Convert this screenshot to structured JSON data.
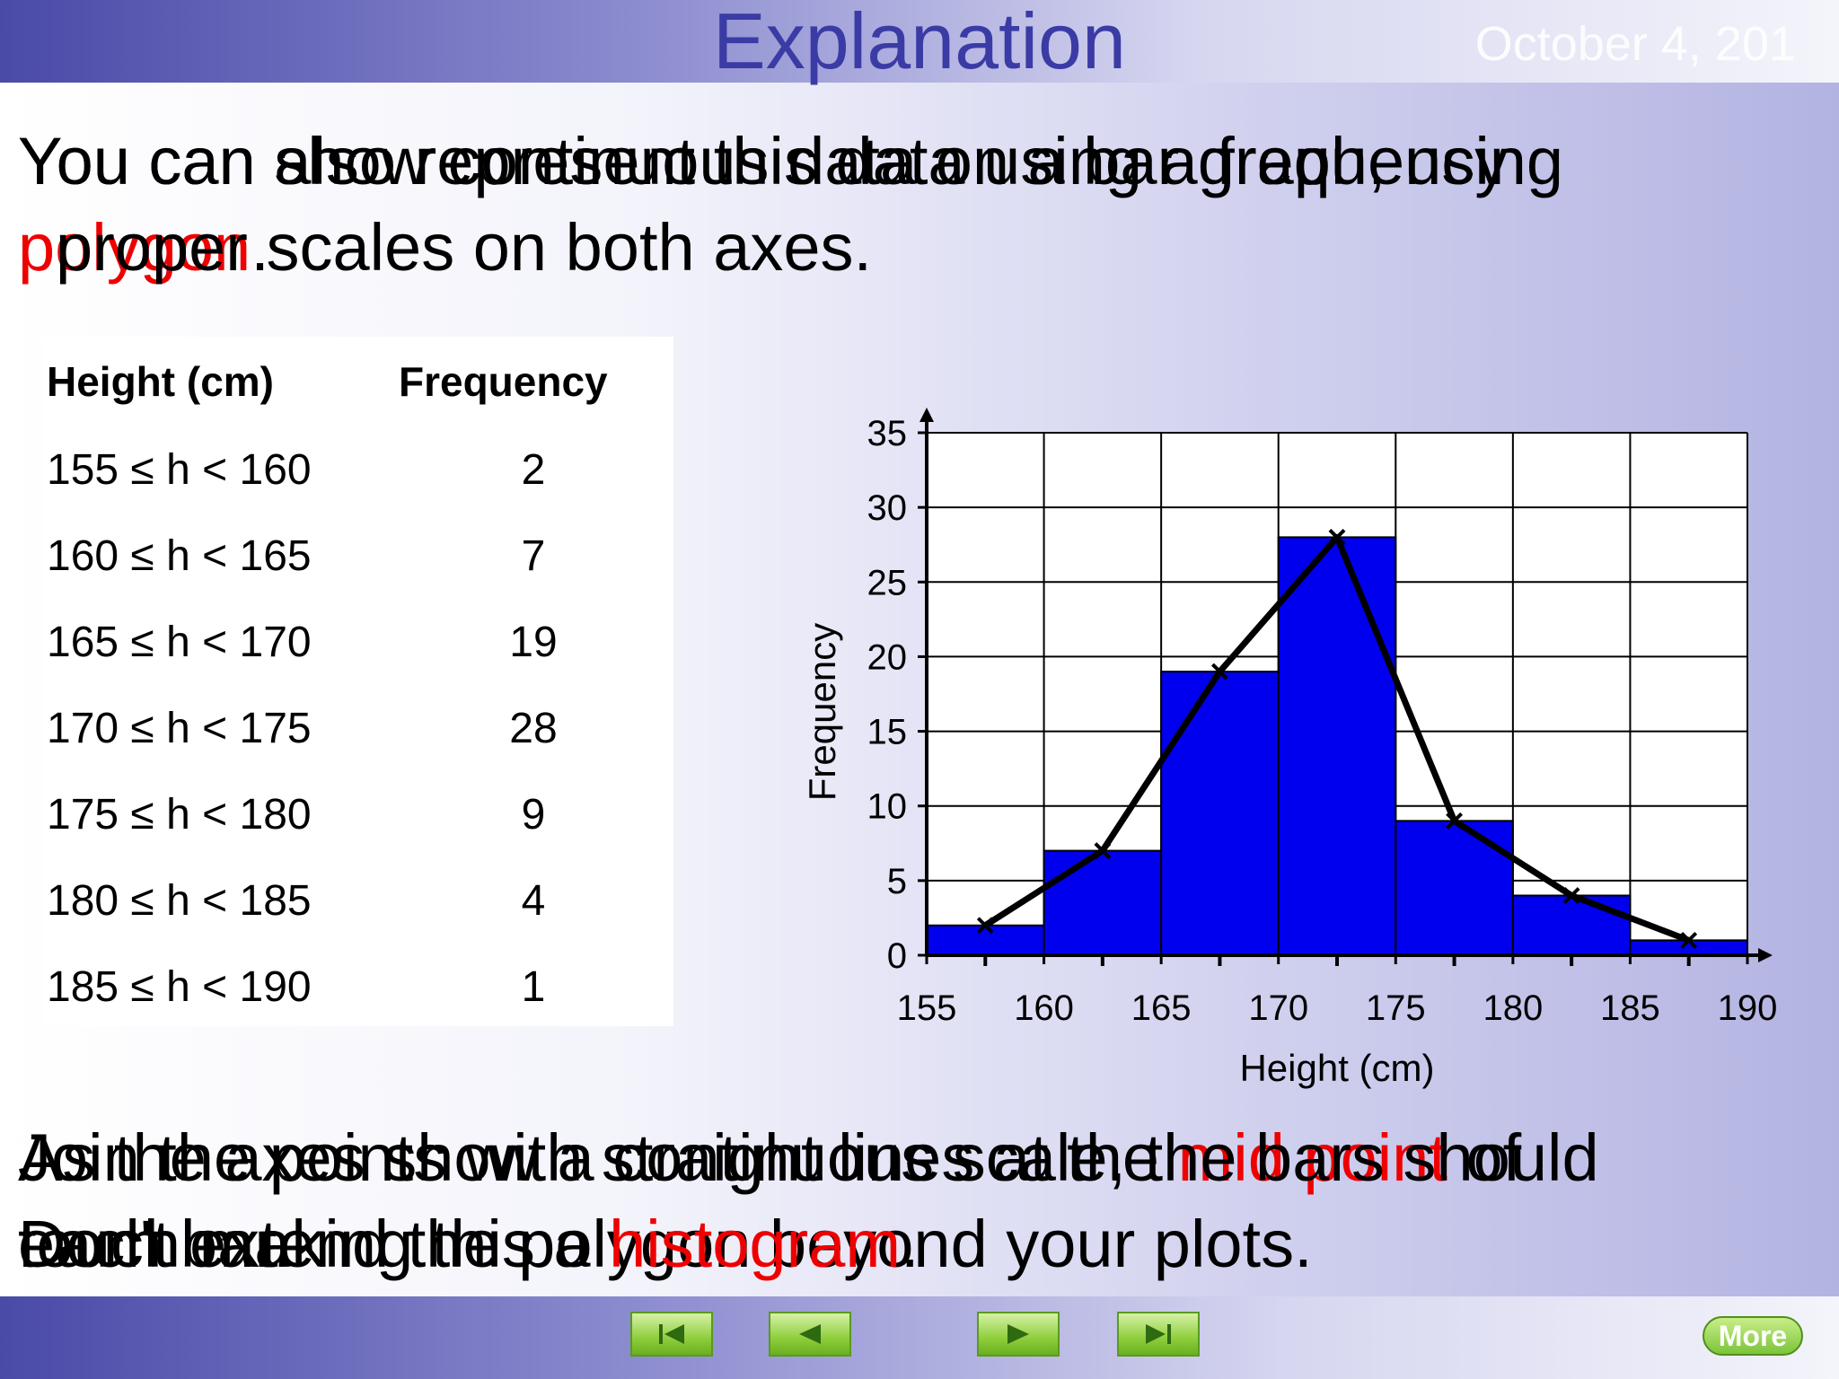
{
  "slide": {
    "title": "Explanation",
    "date": "October 4, 201"
  },
  "intro": {
    "layer1_text": "You can also represent this data using a frequency",
    "layer1_red": "polygon",
    "layer1_rest": ".",
    "layer2_text": "You can show continuous data on a bar graph, using",
    "layer2_line2": "proper scales on both axes."
  },
  "table": {
    "headers": [
      "Height (cm)",
      "Frequency"
    ],
    "rows": [
      {
        "range": "155 ≤ h < 160",
        "freq": "2"
      },
      {
        "range": "160 ≤ h < 165",
        "freq": "7"
      },
      {
        "range": "165 ≤ h < 170",
        "freq": "19"
      },
      {
        "range": "170 ≤ h < 175",
        "freq": "28"
      },
      {
        "range": "175 ≤ h < 180",
        "freq": "9"
      },
      {
        "range": "180 ≤ h < 185",
        "freq": "4"
      },
      {
        "range": "185 ≤ h < 190",
        "freq": "1"
      }
    ]
  },
  "outro": {
    "layer1_line1_a": "Join the points with straight lines at the ",
    "layer1_line1_red": "mid point",
    "layer1_line1_b": " of",
    "layer1_line2": "each bar.",
    "layer2_line1": "Don't extend the polygon beyond your plots.",
    "layer3_line1": "As the axes show a continuous scale, the bars should",
    "layer3_line2_a": "touch making this a ",
    "layer3_line2_red": "histogram",
    "layer3_line2_b": "."
  },
  "chart_data": {
    "type": "bar",
    "title": "",
    "xlabel": "Height (cm)",
    "ylabel": "Frequency",
    "bins": [
      [
        155,
        160
      ],
      [
        160,
        165
      ],
      [
        165,
        170
      ],
      [
        170,
        175
      ],
      [
        175,
        180
      ],
      [
        180,
        185
      ],
      [
        185,
        190
      ]
    ],
    "values": [
      2,
      7,
      19,
      28,
      9,
      4,
      1
    ],
    "polygon": {
      "x": [
        157.5,
        162.5,
        167.5,
        172.5,
        177.5,
        182.5,
        187.5
      ],
      "y": [
        2,
        7,
        19,
        28,
        9,
        4,
        1
      ]
    },
    "x_ticks": [
      "155",
      "160",
      "165",
      "170",
      "175",
      "180",
      "185",
      "190"
    ],
    "y_ticks": [
      "0",
      "5",
      "10",
      "15",
      "20",
      "25",
      "30",
      "35"
    ],
    "xlim": [
      155,
      190
    ],
    "ylim": [
      0,
      35
    ],
    "grid": true,
    "bar_color": "#0000ee",
    "line_color": "#000000"
  },
  "nav": {
    "more_label": "More"
  }
}
